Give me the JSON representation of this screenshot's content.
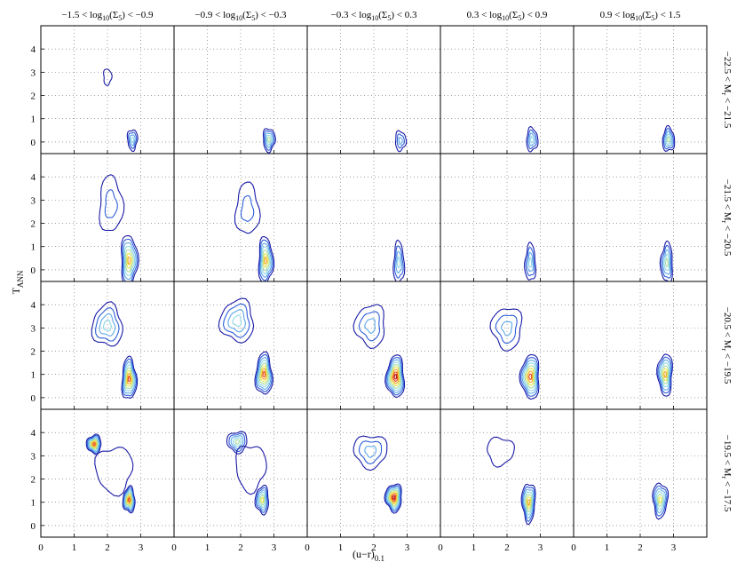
{
  "chart_data": {
    "type": "contour",
    "title": "",
    "xlabel": "(u−r)",
    "xlabel_sub": "0.1",
    "ylabel": "T",
    "ylabel_sub": "ANN",
    "xlim": [
      0,
      4
    ],
    "ylim": [
      -0.5,
      5
    ],
    "x_ticks": [
      0,
      1,
      2,
      3
    ],
    "y_ticks": [
      0,
      1,
      2,
      3,
      4
    ],
    "grid": "dotted",
    "columns": [
      {
        "pre": "−1.5 < log",
        "sub": "10",
        "mid": "(Σ",
        "sub2": "5",
        "post": ") < −0.9"
      },
      {
        "pre": "−0.9 < log",
        "sub": "10",
        "mid": "(Σ",
        "sub2": "5",
        "post": ") < −0.3"
      },
      {
        "pre": "−0.3 < log",
        "sub": "10",
        "mid": "(Σ",
        "sub2": "5",
        "post": ") < 0.3"
      },
      {
        "pre": "0.3 < log",
        "sub": "10",
        "mid": "(Σ",
        "sub2": "5",
        "post": ") < 0.9"
      },
      {
        "pre": "0.9 < log",
        "sub": "10",
        "mid": "(Σ",
        "sub2": "5",
        "post": ") < 1.5"
      }
    ],
    "rows": [
      {
        "pre": "−22.5 < M",
        "sub": "r",
        "post": " < −21.5"
      },
      {
        "pre": "−21.5 < M",
        "sub": "r",
        "post": " < −20.5"
      },
      {
        "pre": "−20.5 < M",
        "sub": "r",
        "post": " < −19.5"
      },
      {
        "pre": "−19.5 < M",
        "sub": "r",
        "post": " < −17.5"
      }
    ],
    "contour_colors": [
      "#1a1aa6",
      "#2e5fd8",
      "#5ea8e8",
      "#8ed6e6",
      "#a6dca0",
      "#e6e64a",
      "#f5a623",
      "#e84a1c",
      "#b80f0f"
    ],
    "panels": [
      [
        {
          "blobs": [
            {
              "cx": 2.75,
              "cy": 0.1,
              "sx": 0.15,
              "sy": 0.45,
              "lev": 4
            },
            {
              "cx": 2.0,
              "cy": 2.8,
              "sx": 0.12,
              "sy": 0.35,
              "lev": 1
            }
          ]
        },
        {
          "blobs": [
            {
              "cx": 2.85,
              "cy": 0.1,
              "sx": 0.18,
              "sy": 0.5,
              "lev": 5
            }
          ]
        },
        {
          "blobs": [
            {
              "cx": 2.8,
              "cy": 0.05,
              "sx": 0.16,
              "sy": 0.42,
              "lev": 3
            }
          ]
        },
        {
          "blobs": [
            {
              "cx": 2.75,
              "cy": 0.1,
              "sx": 0.17,
              "sy": 0.5,
              "lev": 4
            }
          ]
        },
        {
          "blobs": [
            {
              "cx": 2.85,
              "cy": 0.1,
              "sx": 0.18,
              "sy": 0.52,
              "lev": 5
            }
          ]
        }
      ],
      [
        {
          "blobs": [
            {
              "cx": 2.65,
              "cy": 0.4,
              "sx": 0.25,
              "sy": 1.1,
              "lev": 7
            },
            {
              "cx": 2.1,
              "cy": 2.8,
              "sx": 0.35,
              "sy": 1.2,
              "lev": 2
            }
          ]
        },
        {
          "blobs": [
            {
              "cx": 2.75,
              "cy": 0.4,
              "sx": 0.22,
              "sy": 1.0,
              "lev": 7
            },
            {
              "cx": 2.2,
              "cy": 2.6,
              "sx": 0.35,
              "sy": 1.1,
              "lev": 2
            }
          ]
        },
        {
          "blobs": [
            {
              "cx": 2.75,
              "cy": 0.3,
              "sx": 0.16,
              "sy": 0.9,
              "lev": 4
            }
          ]
        },
        {
          "blobs": [
            {
              "cx": 2.7,
              "cy": 0.3,
              "sx": 0.16,
              "sy": 0.8,
              "lev": 4
            }
          ]
        },
        {
          "blobs": [
            {
              "cx": 2.8,
              "cy": 0.3,
              "sx": 0.18,
              "sy": 0.85,
              "lev": 5
            }
          ]
        }
      ],
      [
        {
          "blobs": [
            {
              "cx": 2.65,
              "cy": 0.8,
              "sx": 0.22,
              "sy": 0.9,
              "lev": 8
            },
            {
              "cx": 2.0,
              "cy": 3.1,
              "sx": 0.45,
              "sy": 0.9,
              "lev": 4
            }
          ]
        },
        {
          "blobs": [
            {
              "cx": 2.7,
              "cy": 1.0,
              "sx": 0.25,
              "sy": 0.9,
              "lev": 8
            },
            {
              "cx": 1.9,
              "cy": 3.3,
              "sx": 0.5,
              "sy": 0.9,
              "lev": 4
            }
          ]
        },
        {
          "blobs": [
            {
              "cx": 2.65,
              "cy": 0.9,
              "sx": 0.27,
              "sy": 0.9,
              "lev": 9
            },
            {
              "cx": 1.9,
              "cy": 3.1,
              "sx": 0.45,
              "sy": 0.9,
              "lev": 3
            }
          ]
        },
        {
          "blobs": [
            {
              "cx": 2.7,
              "cy": 0.9,
              "sx": 0.28,
              "sy": 0.95,
              "lev": 8
            },
            {
              "cx": 2.0,
              "cy": 3.0,
              "sx": 0.45,
              "sy": 0.9,
              "lev": 3
            }
          ]
        },
        {
          "blobs": [
            {
              "cx": 2.75,
              "cy": 1.0,
              "sx": 0.22,
              "sy": 0.9,
              "lev": 7
            }
          ]
        }
      ],
      [
        {
          "blobs": [
            {
              "cx": 2.65,
              "cy": 1.1,
              "sx": 0.18,
              "sy": 0.55,
              "lev": 8
            },
            {
              "cx": 1.6,
              "cy": 3.5,
              "sx": 0.22,
              "sy": 0.4,
              "lev": 8
            },
            {
              "cx": 2.2,
              "cy": 2.4,
              "sx": 0.55,
              "sy": 1.0,
              "lev": 1
            }
          ]
        },
        {
          "blobs": [
            {
              "cx": 2.65,
              "cy": 1.1,
              "sx": 0.2,
              "sy": 0.6,
              "lev": 6
            },
            {
              "cx": 1.9,
              "cy": 3.6,
              "sx": 0.3,
              "sy": 0.45,
              "lev": 5
            },
            {
              "cx": 2.3,
              "cy": 2.5,
              "sx": 0.45,
              "sy": 1.0,
              "lev": 1
            }
          ]
        },
        {
          "blobs": [
            {
              "cx": 2.6,
              "cy": 1.2,
              "sx": 0.25,
              "sy": 0.6,
              "lev": 9
            },
            {
              "cx": 1.9,
              "cy": 3.2,
              "sx": 0.5,
              "sy": 0.7,
              "lev": 3
            }
          ]
        },
        {
          "blobs": [
            {
              "cx": 2.65,
              "cy": 1.0,
              "sx": 0.2,
              "sy": 0.85,
              "lev": 7
            },
            {
              "cx": 1.8,
              "cy": 3.2,
              "sx": 0.4,
              "sy": 0.6,
              "lev": 1
            }
          ]
        },
        {
          "blobs": [
            {
              "cx": 2.6,
              "cy": 1.1,
              "sx": 0.22,
              "sy": 0.75,
              "lev": 6
            }
          ]
        }
      ]
    ]
  }
}
